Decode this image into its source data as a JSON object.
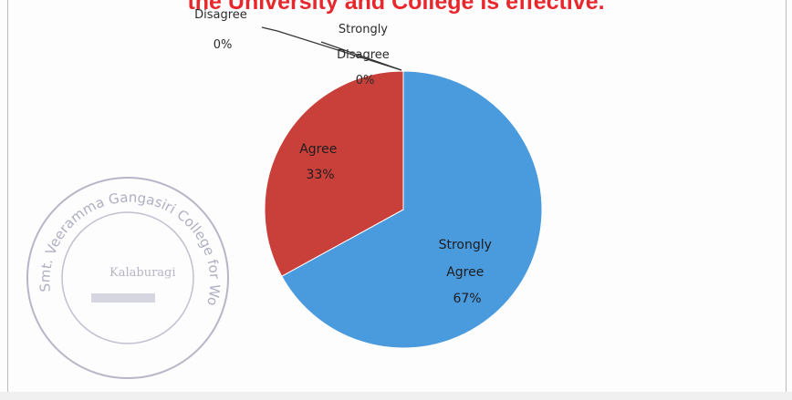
{
  "chart_data": {
    "type": "pie",
    "title": "the University and College is effective.",
    "categories": [
      "Strongly Agree",
      "Agree",
      "Disagree",
      "Strongly Disagree"
    ],
    "values": [
      67,
      33,
      0,
      0
    ],
    "value_labels": [
      "67%",
      "33%",
      "0%",
      "0%"
    ],
    "label_lines": {
      "strongly_agree": [
        "Strongly",
        "Agree",
        "67%"
      ],
      "agree": [
        "Agree",
        "33%"
      ],
      "disagree": [
        "Disagree",
        "0%"
      ],
      "strongly_disagree": [
        "Strongly",
        "Disagree",
        "0%"
      ]
    },
    "colors": [
      "#4a9ade",
      "#c9403b",
      "#6a9c3e",
      "#7d5fa5"
    ],
    "legend": "none"
  },
  "stamp": {
    "text": "Smt. Veeramma Gangasiri College for Women",
    "city": "Kalaburagi"
  }
}
